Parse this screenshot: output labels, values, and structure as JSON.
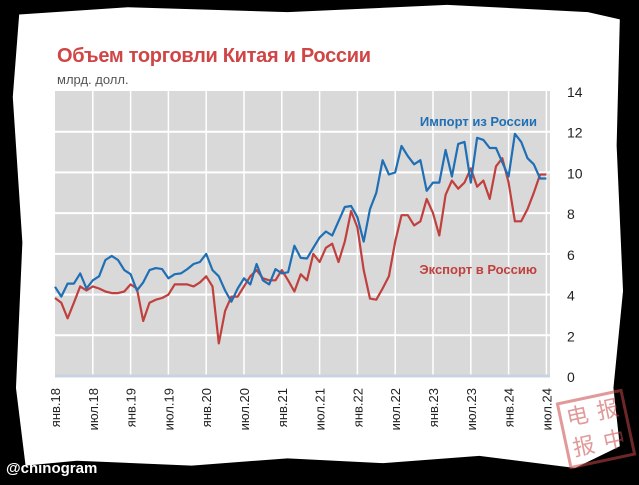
{
  "chart_data": {
    "type": "line",
    "title": "Объем торговли Китая и России",
    "ylabel": "млрд. долл.",
    "xlabel": "",
    "ylim": [
      0,
      14
    ],
    "yticks": [
      "0",
      "2",
      "4",
      "6",
      "8",
      "10",
      "12",
      "14"
    ],
    "xtick_labels": [
      "янв.18",
      "июл.18",
      "янв.19",
      "июл.19",
      "янв.20",
      "июл.20",
      "янв.21",
      "июл.21",
      "янв.22",
      "июл.22",
      "янв.23",
      "июл.23",
      "янв.24",
      "июл.24"
    ],
    "x_start": "янв.18",
    "frequency": "monthly",
    "grid": true,
    "series": [
      {
        "name": "Импорт из России",
        "color": "#1f6fb5",
        "values": [
          4.38,
          3.9,
          4.54,
          4.54,
          5.04,
          4.3,
          4.7,
          4.9,
          5.7,
          5.9,
          5.7,
          5.2,
          5.0,
          4.2,
          4.6,
          5.2,
          5.3,
          5.25,
          4.8,
          5.0,
          5.04,
          5.25,
          5.5,
          5.6,
          6.0,
          5.2,
          4.9,
          4.2,
          3.65,
          4.3,
          4.8,
          4.5,
          5.5,
          4.7,
          4.5,
          5.25,
          5.04,
          5.1,
          6.4,
          5.8,
          5.77,
          6.3,
          6.8,
          7.1,
          6.9,
          7.6,
          8.3,
          8.35,
          7.8,
          6.6,
          8.2,
          9.0,
          10.6,
          9.9,
          10.0,
          11.3,
          10.8,
          10.4,
          10.6,
          9.1,
          9.5,
          9.5,
          11.1,
          9.8,
          11.4,
          11.5,
          9.5,
          11.7,
          11.6,
          11.2,
          11.2,
          10.5,
          9.8,
          11.9,
          11.5,
          10.7,
          10.4,
          9.7,
          9.7
        ]
      },
      {
        "name": "Экспорт в Россию",
        "color": "#c0403e",
        "values": [
          3.83,
          3.6,
          2.83,
          3.6,
          4.4,
          4.2,
          4.4,
          4.3,
          4.15,
          4.07,
          4.07,
          4.15,
          4.5,
          4.3,
          2.7,
          3.6,
          3.75,
          3.83,
          4.0,
          4.5,
          4.5,
          4.5,
          4.4,
          4.6,
          4.9,
          4.4,
          1.6,
          3.2,
          3.9,
          3.9,
          4.4,
          4.9,
          5.2,
          4.8,
          4.7,
          4.7,
          5.2,
          4.7,
          4.15,
          5.0,
          4.7,
          6.0,
          5.6,
          6.3,
          6.5,
          5.6,
          6.6,
          8.1,
          7.3,
          5.2,
          3.8,
          3.75,
          4.3,
          4.9,
          6.6,
          7.9,
          7.9,
          7.4,
          7.6,
          8.7,
          8.0,
          6.9,
          8.9,
          9.6,
          9.2,
          9.5,
          10.2,
          9.3,
          9.6,
          8.7,
          10.3,
          10.7,
          9.5,
          7.6,
          7.6,
          8.2,
          9.0,
          9.9,
          9.9
        ]
      }
    ]
  },
  "watermark": "@chinogram",
  "stamp_text": [
    "电",
    "报",
    "报",
    "中"
  ]
}
